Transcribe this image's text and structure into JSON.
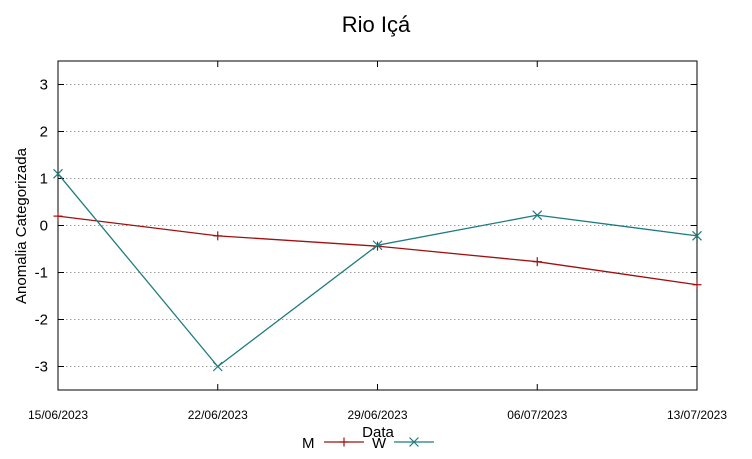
{
  "chart_data": {
    "type": "line",
    "title": "Rio Içá",
    "xlabel": "Data",
    "ylabel": "Anomalia Categorizada",
    "categories": [
      "15/06/2023",
      "22/06/2023",
      "29/06/2023",
      "06/07/2023",
      "13/07/2023"
    ],
    "ylim": [
      -3.5,
      3.5
    ],
    "yticks": [
      -3,
      -2,
      -1,
      0,
      1,
      2,
      3
    ],
    "grid": true,
    "legend_position": "bottom-center",
    "series": [
      {
        "name": "M",
        "color": "#a01010",
        "marker": "plus",
        "values": [
          0.2,
          -0.22,
          -0.44,
          -0.77,
          -1.26
        ]
      },
      {
        "name": "W",
        "color": "#1e7b80",
        "marker": "cross",
        "values": [
          1.1,
          -3.0,
          -0.42,
          0.22,
          -0.22
        ]
      }
    ]
  }
}
